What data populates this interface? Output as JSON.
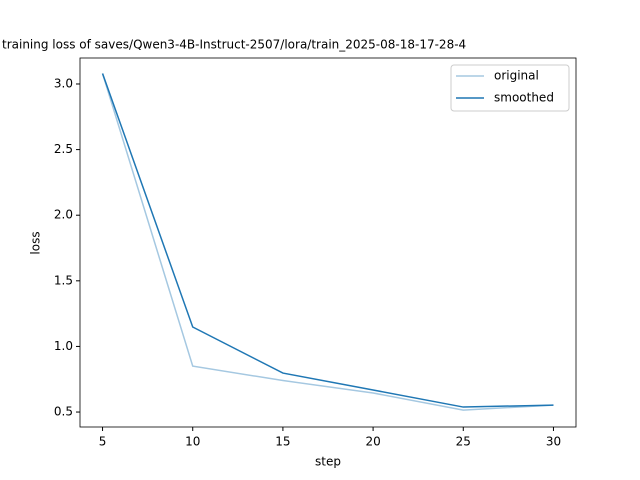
{
  "chart_data": {
    "type": "line",
    "title": "training loss of saves/Qwen3-4B-Instruct-2507/lora/train_2025-08-18-17-28-4",
    "x_label": "step",
    "y_label": "loss",
    "x": [
      5,
      10,
      15,
      20,
      25,
      30
    ],
    "series": [
      {
        "name": "original",
        "color": "#a5c8e1",
        "values": [
          3.08,
          0.85,
          0.74,
          0.645,
          0.515,
          0.553
        ]
      },
      {
        "name": "smoothed",
        "color": "#1f77b4",
        "values": [
          3.08,
          1.148,
          0.797,
          0.668,
          0.538,
          0.553
        ]
      }
    ],
    "xlim": [
      3.75,
      31.25
    ],
    "xticks": [
      5,
      10,
      15,
      20,
      25,
      30
    ],
    "ylim": [
      0.386,
      3.198
    ],
    "yticks": [
      0.5,
      {
        "value": 1,
        "label": "1.0"
      },
      1.5,
      {
        "value": 2,
        "label": "2.0"
      },
      2.5,
      {
        "value": 3,
        "label": "3.0"
      }
    ],
    "legend": "upper right"
  }
}
